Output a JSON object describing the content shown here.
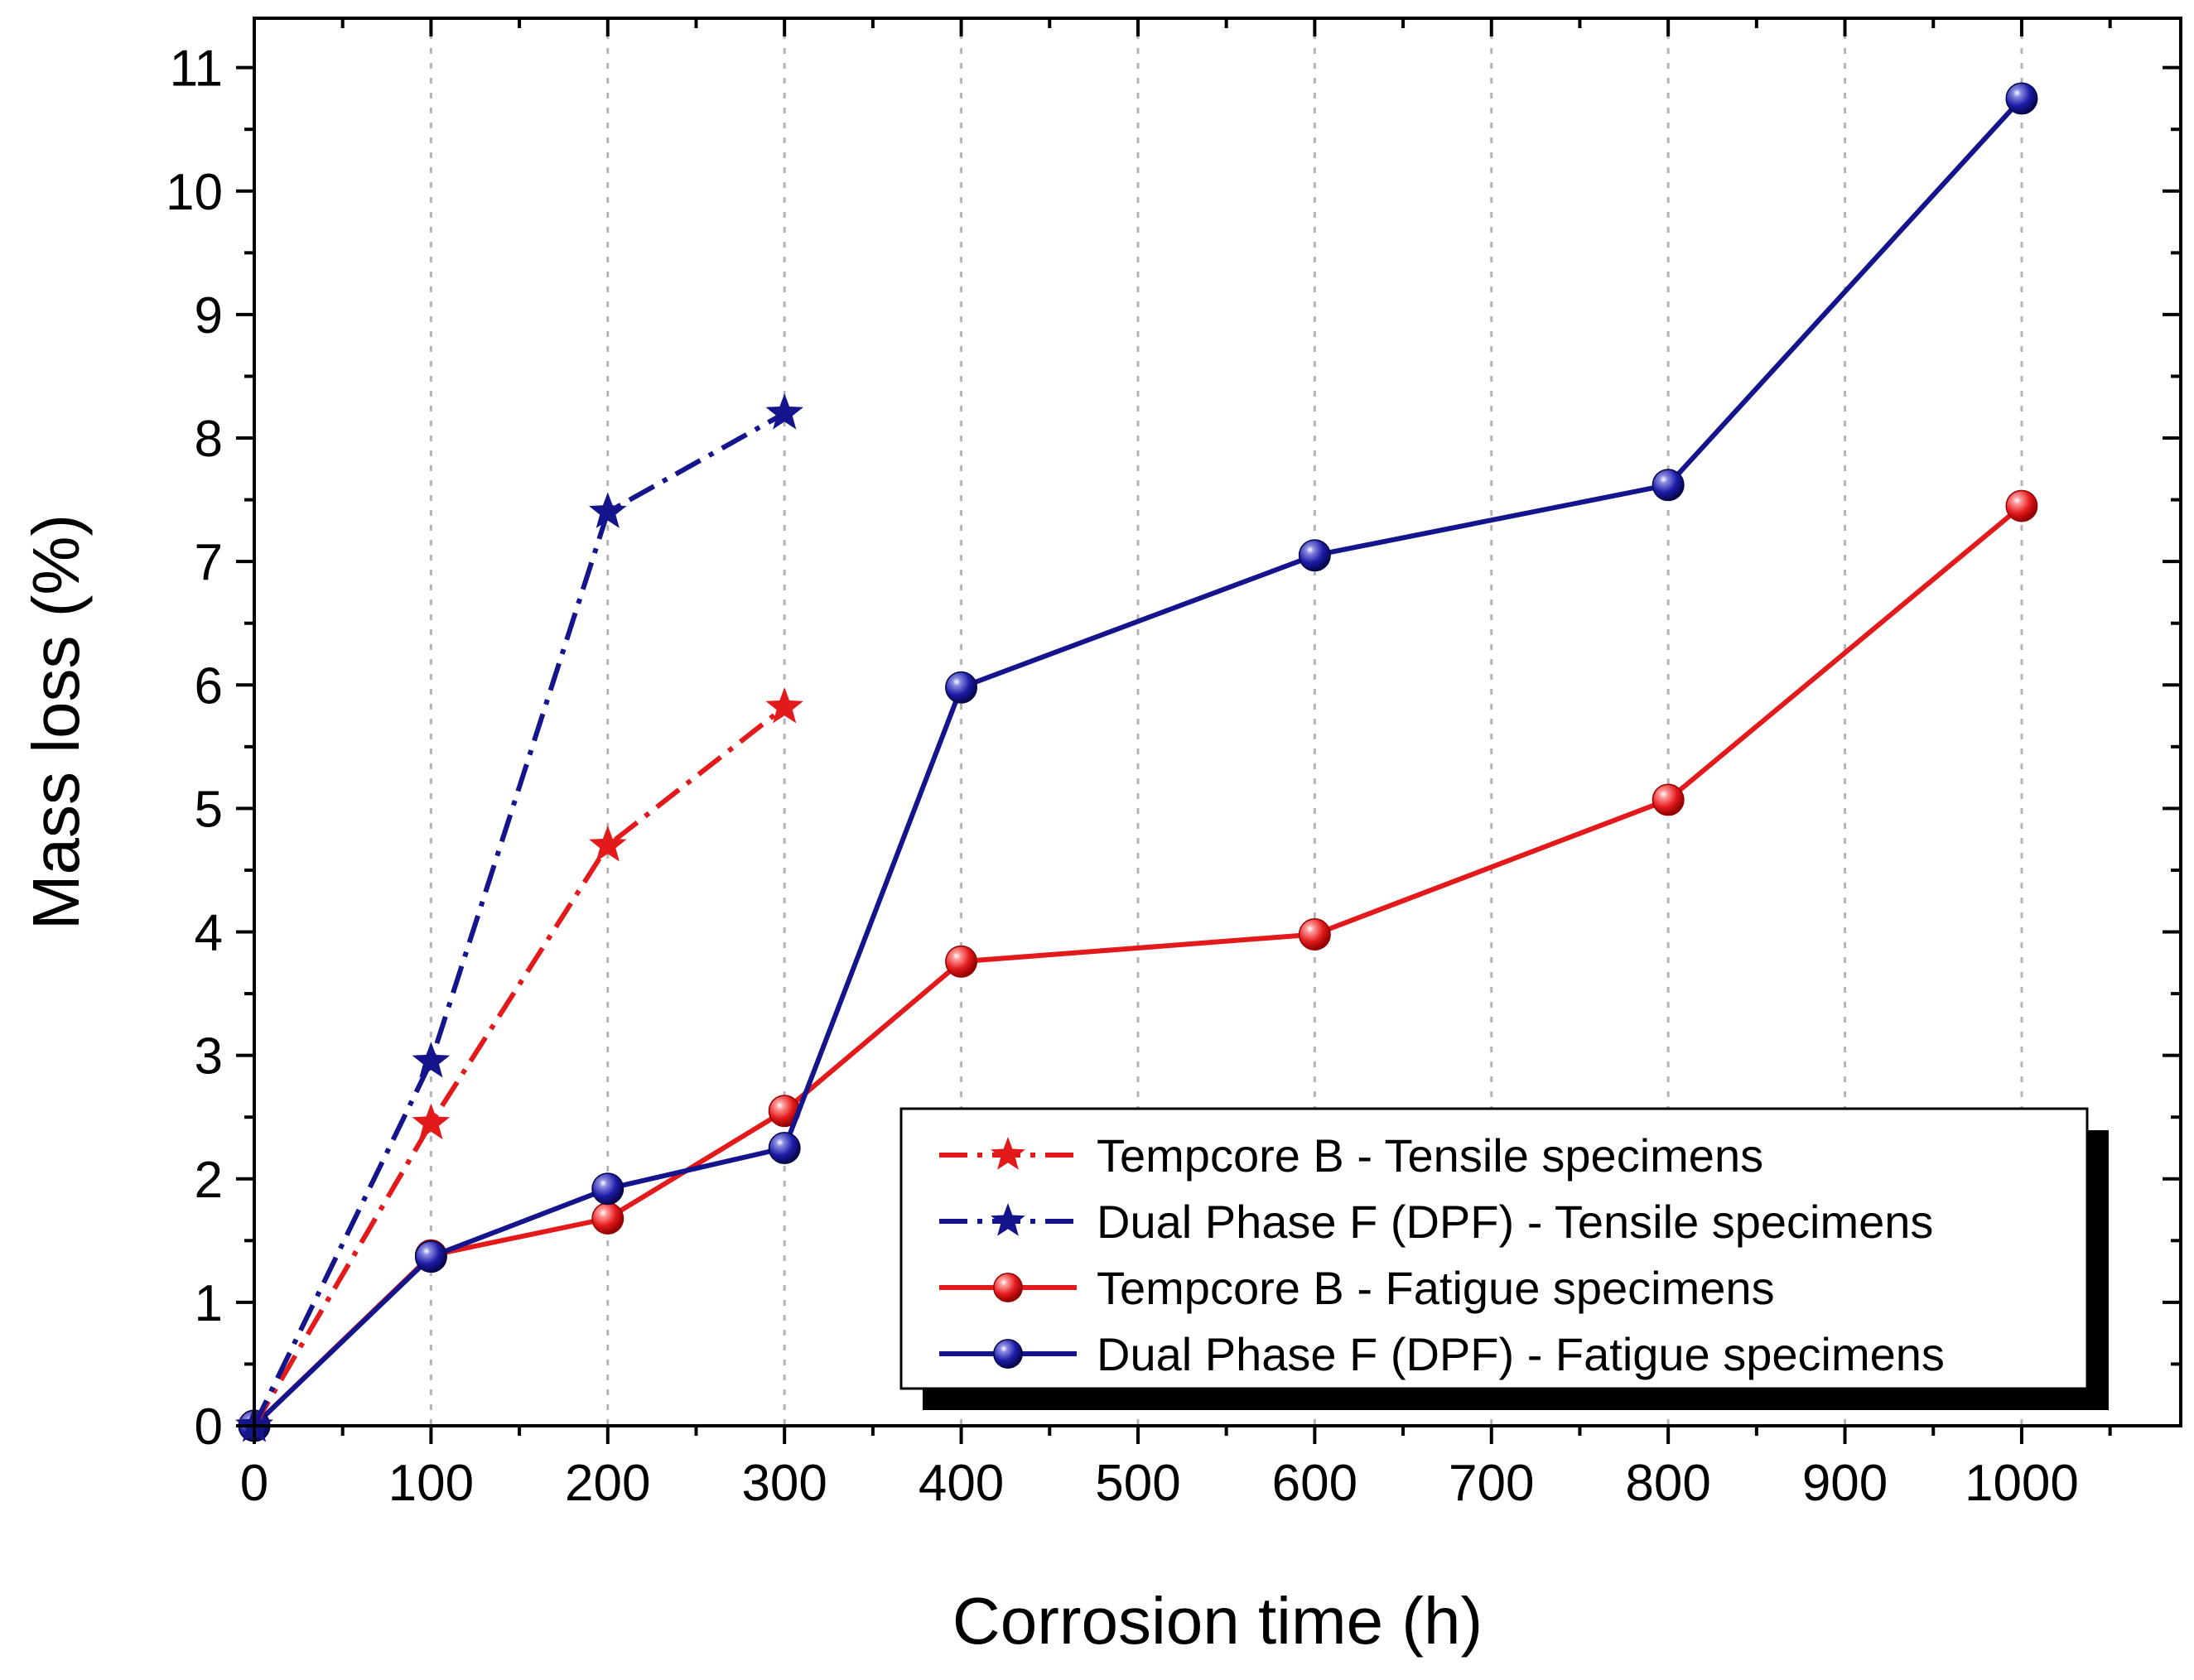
{
  "chart_data": {
    "type": "line",
    "title": "",
    "xlabel": "Corrosion time (h)",
    "ylabel": "Mass loss (%)",
    "xlim": [
      0,
      1090
    ],
    "ylim": [
      0,
      11.4
    ],
    "x_major_ticks": [
      0,
      100,
      200,
      300,
      400,
      500,
      600,
      700,
      800,
      900,
      1000
    ],
    "x_tick_labels": [
      "0",
      "100",
      "200",
      "300",
      "400",
      "500",
      "600",
      "700",
      "800",
      "900",
      "1000"
    ],
    "y_major_ticks": [
      0,
      1,
      2,
      3,
      4,
      5,
      6,
      7,
      8,
      9,
      10,
      11
    ],
    "y_tick_labels": [
      "0",
      "1",
      "2",
      "3",
      "4",
      "5",
      "6",
      "7",
      "8",
      "9",
      "10",
      "11"
    ],
    "grid": "vertical dotted at x major ticks",
    "legend_position": "bottom-right",
    "series": [
      {
        "name": "Tempcore B - Tensile specimens",
        "color": "#e31a1c",
        "line_style": "dash-dot",
        "marker": "star",
        "x": [
          0,
          100,
          200,
          300
        ],
        "y": [
          0,
          2.45,
          4.7,
          5.82
        ]
      },
      {
        "name": "Dual Phase F (DPF) - Tensile specimens",
        "color": "#14148c",
        "line_style": "dash-dot",
        "marker": "star",
        "x": [
          0,
          100,
          200,
          300
        ],
        "y": [
          0,
          2.95,
          7.4,
          8.2
        ]
      },
      {
        "name": "Tempcore B - Fatigue specimens",
        "color": "#e31a1c",
        "line_style": "solid",
        "marker": "sphere",
        "x": [
          0,
          100,
          200,
          300,
          400,
          600,
          800,
          1000
        ],
        "y": [
          0,
          1.38,
          1.68,
          2.55,
          3.76,
          3.98,
          5.07,
          7.45
        ]
      },
      {
        "name": "Dual Phase F (DPF) - Fatigue specimens",
        "color": "#14148c",
        "line_style": "solid",
        "marker": "sphere",
        "x": [
          0,
          100,
          200,
          300,
          400,
          600,
          800,
          1000
        ],
        "y": [
          0,
          1.37,
          1.92,
          2.25,
          5.98,
          7.05,
          7.62,
          10.75
        ]
      }
    ]
  }
}
